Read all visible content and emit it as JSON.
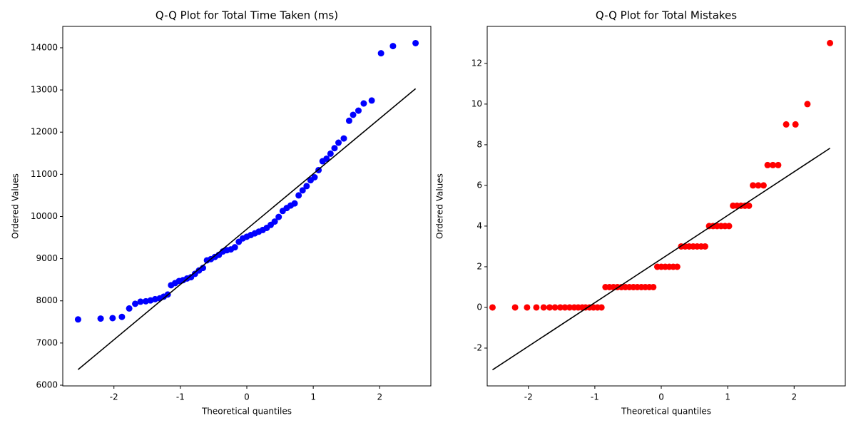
{
  "chart_data": [
    {
      "type": "scatter",
      "title": "Q-Q Plot for Total Time Taken (ms)",
      "xlabel": "Theoretical quantiles",
      "ylabel": "Ordered Values",
      "x": [
        -2.54,
        -2.2,
        -2.02,
        -1.88,
        -1.77,
        -1.68,
        -1.6,
        -1.52,
        -1.45,
        -1.38,
        -1.31,
        -1.25,
        -1.19,
        -1.14,
        -1.08,
        -1.02,
        -0.96,
        -0.9,
        -0.84,
        -0.78,
        -0.72,
        -0.66,
        -0.6,
        -0.54,
        -0.48,
        -0.42,
        -0.36,
        -0.3,
        -0.24,
        -0.18,
        -0.12,
        -0.06,
        0,
        0.06,
        0.12,
        0.18,
        0.24,
        0.3,
        0.36,
        0.42,
        0.48,
        0.54,
        0.6,
        0.66,
        0.72,
        0.78,
        0.84,
        0.9,
        0.96,
        1.02,
        1.08,
        1.14,
        1.2,
        1.26,
        1.32,
        1.38,
        1.46,
        1.54,
        1.6,
        1.68,
        1.76,
        1.88,
        2.02,
        2.2,
        2.54
      ],
      "series": [
        {
          "color": "#0000ff",
          "values": [
            7560,
            7580,
            7590,
            7620,
            7820,
            7930,
            7980,
            7990,
            8010,
            8040,
            8060,
            8100,
            8150,
            8370,
            8420,
            8470,
            8490,
            8530,
            8560,
            8640,
            8720,
            8780,
            8960,
            8990,
            9040,
            9090,
            9170,
            9200,
            9220,
            9270,
            9400,
            9480,
            9520,
            9560,
            9600,
            9640,
            9680,
            9730,
            9800,
            9880,
            9990,
            10130,
            10200,
            10260,
            10310,
            10500,
            10620,
            10720,
            10860,
            10930,
            11100,
            11310,
            11370,
            11490,
            11620,
            11750,
            11850,
            12270,
            12410,
            12510,
            12680,
            12750,
            13870,
            14040,
            14110
          ]
        }
      ],
      "fit_line": {
        "x": [
          -2.54,
          2.54
        ],
        "y": [
          6370,
          13030
        ],
        "color": "#000000"
      },
      "xlim": [
        -2.77,
        2.77
      ],
      "ylim": [
        5983,
        14507
      ],
      "xticks": [
        -2,
        -1,
        0,
        1,
        2
      ],
      "yticks": [
        6000,
        7000,
        8000,
        9000,
        10000,
        11000,
        12000,
        13000,
        14000
      ]
    },
    {
      "type": "scatter",
      "title": "Q-Q Plot for Total Mistakes",
      "xlabel": "Theoretical quantiles",
      "ylabel": "Ordered Values",
      "x": [
        -2.54,
        -2.2,
        -2.02,
        -1.88,
        -1.77,
        -1.68,
        -1.6,
        -1.52,
        -1.45,
        -1.38,
        -1.31,
        -1.25,
        -1.19,
        -1.14,
        -1.08,
        -1.02,
        -0.96,
        -0.9,
        -0.84,
        -0.78,
        -0.72,
        -0.66,
        -0.6,
        -0.54,
        -0.48,
        -0.42,
        -0.36,
        -0.3,
        -0.24,
        -0.18,
        -0.12,
        -0.06,
        0,
        0.06,
        0.12,
        0.18,
        0.24,
        0.3,
        0.36,
        0.42,
        0.48,
        0.54,
        0.6,
        0.66,
        0.72,
        0.78,
        0.84,
        0.9,
        0.96,
        1.02,
        1.08,
        1.14,
        1.2,
        1.26,
        1.32,
        1.38,
        1.46,
        1.54,
        1.6,
        1.68,
        1.76,
        1.88,
        2.02,
        2.2,
        2.54
      ],
      "series": [
        {
          "color": "#ff0000",
          "values": [
            0,
            0,
            0,
            0,
            0,
            0,
            0,
            0,
            0,
            0,
            0,
            0,
            0,
            0,
            0,
            0,
            0,
            0,
            1,
            1,
            1,
            1,
            1,
            1,
            1,
            1,
            1,
            1,
            1,
            1,
            1,
            2,
            2,
            2,
            2,
            2,
            2,
            3,
            3,
            3,
            3,
            3,
            3,
            3,
            4,
            4,
            4,
            4,
            4,
            4,
            5,
            5,
            5,
            5,
            5,
            6,
            6,
            6,
            7,
            7,
            7,
            9,
            9,
            10,
            13
          ]
        }
      ],
      "fit_line": {
        "x": [
          -2.54,
          2.54
        ],
        "y": [
          -3.07,
          7.83
        ],
        "color": "#000000"
      },
      "xlim": [
        -2.62,
        2.77
      ],
      "ylim": [
        -3.86,
        13.82
      ],
      "xticks": [
        -2,
        -1,
        0,
        1,
        2
      ],
      "yticks": [
        -2,
        0,
        2,
        4,
        6,
        8,
        10,
        12
      ]
    }
  ]
}
